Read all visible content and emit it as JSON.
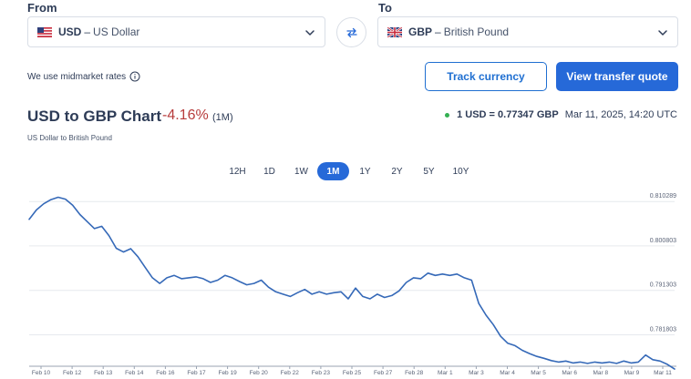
{
  "from": {
    "label": "From",
    "code": "USD",
    "separator": "–",
    "name": "US Dollar",
    "flag_icon": "us-flag-icon"
  },
  "to": {
    "label": "To",
    "code": "GBP",
    "separator": "–",
    "name": "British Pound",
    "flag_icon": "uk-flag-icon"
  },
  "midmarket_text": "We use midmarket rates",
  "buttons": {
    "track": "Track currency",
    "quote": "View transfer quote"
  },
  "chart_header": {
    "title": "USD to GBP Chart",
    "change": "-4.16%",
    "period": "(1M)",
    "subtitle": "US Dollar to British Pound",
    "rate": "1 USD = 0.77347 GBP",
    "timestamp": "Mar 11, 2025, 14:20 UTC"
  },
  "ranges": [
    "12H",
    "1D",
    "1W",
    "1M",
    "1Y",
    "2Y",
    "5Y",
    "10Y"
  ],
  "active_range": "1M",
  "colors": {
    "accent": "#2669d8",
    "negative": "#b73c3c",
    "live": "#34b052",
    "line": "#3569b8"
  },
  "chart_data": {
    "type": "line",
    "title": "",
    "xlabel": "",
    "ylabel": "",
    "ylim": [
      0.7751,
      0.8113
    ],
    "y_ticks": [
      "0.810289",
      "0.800803",
      "0.791303",
      "0.781803"
    ],
    "y_tick_values": [
      0.810289,
      0.800803,
      0.791303,
      0.781803
    ],
    "x_ticks": [
      "Feb 10",
      "Feb 12",
      "Feb 13",
      "Feb 14",
      "Feb 16",
      "Feb 17",
      "Feb 19",
      "Feb 20",
      "Feb 22",
      "Feb 23",
      "Feb 25",
      "Feb 27",
      "Feb 28",
      "Mar 1",
      "Mar 3",
      "Mar 4",
      "Mar 5",
      "Mar 6",
      "Mar 8",
      "Mar 9",
      "Mar 11"
    ],
    "series": [
      {
        "values": [
          0.8065,
          0.8085,
          0.8098,
          0.8107,
          0.8112,
          0.8108,
          0.8095,
          0.8075,
          0.806,
          0.8045,
          0.805,
          0.803,
          0.8003,
          0.7995,
          0.8002,
          0.7985,
          0.7962,
          0.794,
          0.7928,
          0.794,
          0.7945,
          0.7938,
          0.794,
          0.7942,
          0.7938,
          0.793,
          0.7935,
          0.7945,
          0.794,
          0.7932,
          0.7925,
          0.7928,
          0.7935,
          0.792,
          0.791,
          0.7905,
          0.79,
          0.7908,
          0.7915,
          0.7905,
          0.791,
          0.7905,
          0.7908,
          0.791,
          0.7895,
          0.7918,
          0.79,
          0.7895,
          0.7905,
          0.7898,
          0.7902,
          0.7912,
          0.793,
          0.794,
          0.7938,
          0.795,
          0.7945,
          0.7948,
          0.7945,
          0.7948,
          0.794,
          0.7935,
          0.7885,
          0.786,
          0.784,
          0.7815,
          0.78,
          0.7795,
          0.7785,
          0.7778,
          0.7772,
          0.7768,
          0.7763,
          0.776,
          0.7762,
          0.7758,
          0.776,
          0.7757,
          0.776,
          0.7758,
          0.776,
          0.7757,
          0.7762,
          0.7758,
          0.776,
          0.7775,
          0.7765,
          0.7762,
          0.7755,
          0.7745
        ]
      }
    ]
  }
}
